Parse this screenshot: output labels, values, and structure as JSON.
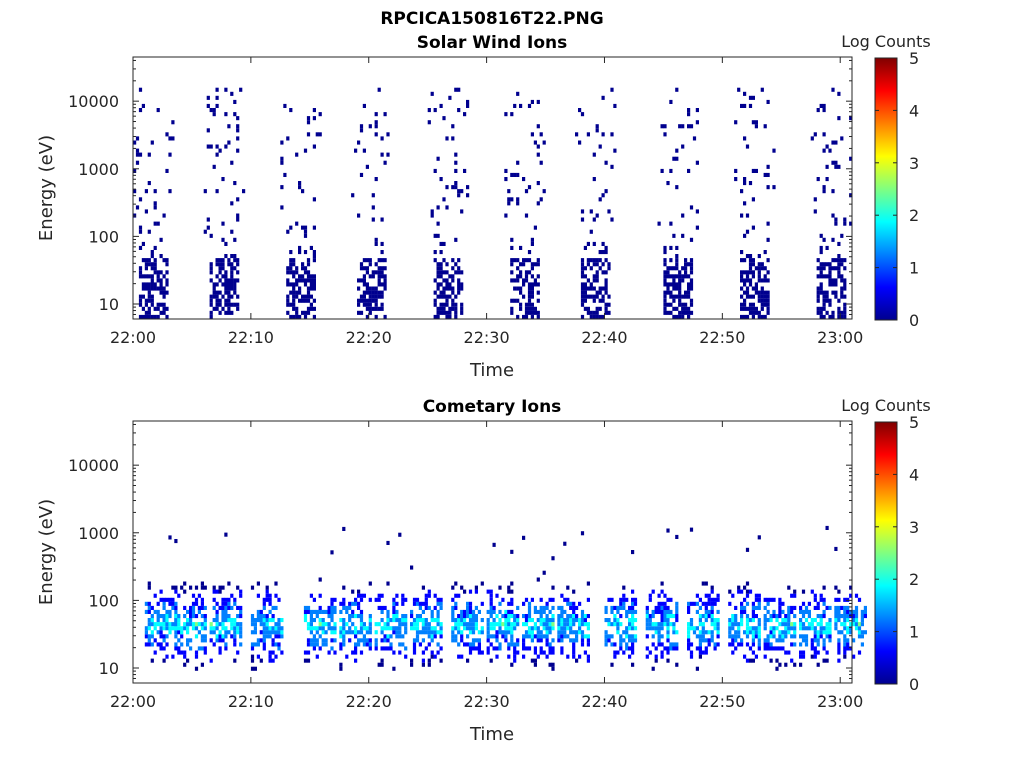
{
  "figure_title": "RPCICA150816T22.PNG",
  "colors": {
    "axis": "#262626",
    "colormap": [
      "#00008f",
      "#0000ff",
      "#0080ff",
      "#00ffff",
      "#80ff80",
      "#ffff00",
      "#ff8000",
      "#ff0000",
      "#800000"
    ]
  },
  "chart_data": [
    {
      "type": "heatmap",
      "title": "Solar Wind Ions",
      "xlabel": "Time",
      "ylabel": "Energy (eV)",
      "yscale": "log",
      "xlim": [
        "22:00",
        "23:01"
      ],
      "ylim": [
        6,
        45000
      ],
      "xticks": [
        "22:00",
        "22:10",
        "22:20",
        "22:30",
        "22:40",
        "22:50",
        "23:00"
      ],
      "yticks": [
        "10",
        "100",
        "1000",
        "10000"
      ],
      "colorbar": {
        "label": "Log Counts",
        "range": [
          0,
          5
        ],
        "ticks": [
          "0",
          "1",
          "2",
          "3",
          "4",
          "5"
        ]
      },
      "burst_start_minutes": [
        0.5,
        6.5,
        13.0,
        19.0,
        25.5,
        32.0,
        38.0,
        45.0,
        51.5,
        58.0
      ],
      "low_energy_band_eV": [
        6,
        100
      ],
      "high_energy_range_eV": [
        100,
        15000
      ],
      "typical_log_counts": 0.1
    },
    {
      "type": "heatmap",
      "title": "Cometary Ions",
      "xlabel": "Time",
      "ylabel": "Energy (eV)",
      "yscale": "log",
      "xlim": [
        "22:00",
        "23:01"
      ],
      "ylim": [
        6,
        45000
      ],
      "xticks": [
        "22:00",
        "22:10",
        "22:20",
        "22:30",
        "22:40",
        "22:50",
        "23:00"
      ],
      "yticks": [
        "10",
        "100",
        "1000",
        "10000"
      ],
      "colorbar": {
        "label": "Log Counts",
        "range": [
          0,
          5
        ],
        "ticks": [
          "0",
          "1",
          "2",
          "3",
          "4",
          "5"
        ]
      },
      "burst_start_minutes": [
        1.0,
        3.5,
        6.5,
        10.0,
        14.5,
        17.5,
        20.5,
        23.5,
        27.0,
        30.0,
        33.0,
        36.0,
        40.0,
        43.5,
        47.0,
        50.5,
        53.5,
        56.5,
        59.5
      ],
      "main_band_eV": [
        8,
        200
      ],
      "peak_energy_eV": 40,
      "max_log_counts": 2.3
    }
  ]
}
